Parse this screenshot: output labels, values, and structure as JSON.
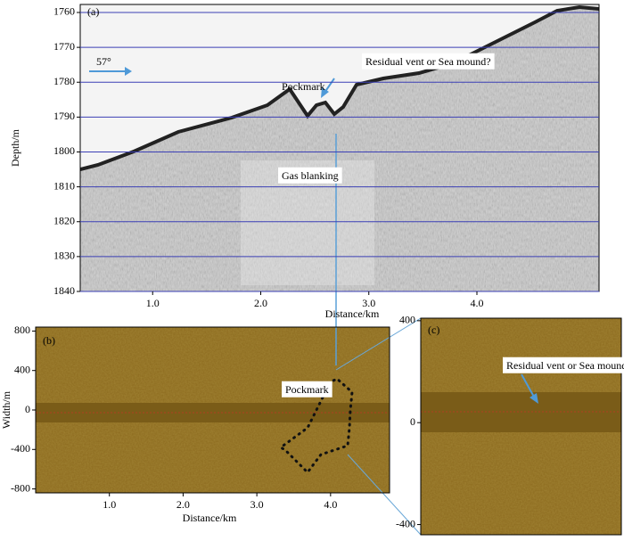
{
  "chart_data": [
    {
      "type": "image",
      "panel_label": "(a)",
      "xlabel": "Distance/km",
      "ylabel": "Depth/m",
      "xlim": [
        0.33,
        5.13
      ],
      "xticks": [
        1.0,
        2.0,
        3.0,
        4.0
      ],
      "ylim": [
        1840,
        1757.7
      ],
      "yticks": [
        1760,
        1770,
        1780,
        1790,
        1800,
        1810,
        1820,
        1830,
        1840
      ],
      "grid": true,
      "grid_color": "#3b3fb5",
      "annotations": [
        "57°",
        "Residual vent or Sea mound?",
        "Pockmark",
        "Gas blanking"
      ]
    },
    {
      "type": "image",
      "panel_label": "(b)",
      "xlabel": "Distance/km",
      "ylabel": "Width/m",
      "xlim": [
        0,
        4.8
      ],
      "xticks": [
        1.0,
        2.0,
        3.0,
        4.0
      ],
      "ylim": [
        -840,
        840
      ],
      "yticks": [
        -800,
        -400,
        0,
        400,
        800
      ],
      "grid": false,
      "annotations": [
        "Pockmark"
      ]
    },
    {
      "type": "image",
      "panel_label": "(c)",
      "ylim": [
        -440,
        410
      ],
      "yticks": [
        -400,
        0,
        400
      ],
      "grid": false,
      "annotations": [
        "Residual vent or Sea mound?"
      ]
    }
  ]
}
